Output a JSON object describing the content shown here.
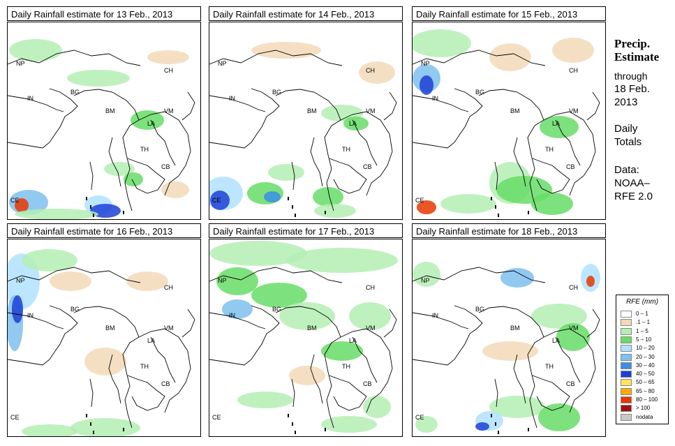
{
  "panels": [
    {
      "title": "Daily Rainfall estimate for  13 Feb., 2013"
    },
    {
      "title": "Daily Rainfall estimate for  14 Feb., 2013"
    },
    {
      "title": "Daily Rainfall estimate for  15 Feb., 2013"
    },
    {
      "title": "Daily Rainfall estimate for  16 Feb., 2013"
    },
    {
      "title": "Daily Rainfall estimate for  17 Feb., 2013"
    },
    {
      "title": "Daily Rainfall estimate for  18 Feb., 2013"
    }
  ],
  "country_labels": [
    "NP",
    "CH",
    "IN",
    "BG",
    "BM",
    "VM",
    "LA",
    "TH",
    "CB",
    "CE"
  ],
  "side": {
    "title_line1": "Precip.",
    "title_line2": "Estimate",
    "through": "through",
    "date_line1": "18 Feb.",
    "date_line2": "2013",
    "daily_line1": "Daily",
    "daily_line2": "Totals",
    "data_line1": "Data:",
    "data_line2": "NOAA–",
    "data_line3": "RFE 2.0"
  },
  "legend": {
    "title": "RFE (mm)",
    "items": [
      {
        "label": "0 – 1",
        "color": "#ffffff"
      },
      {
        "label": ".1 – 1",
        "color": "#f3d9b8"
      },
      {
        "label": "1 – 5",
        "color": "#b4eeb4"
      },
      {
        "label": "5 – 10",
        "color": "#66dd66"
      },
      {
        "label": "10 – 20",
        "color": "#b0e2ff"
      },
      {
        "label": "20 – 30",
        "color": "#7ec0ee"
      },
      {
        "label": "30 – 40",
        "color": "#3a8ee6"
      },
      {
        "label": "40 – 50",
        "color": "#1c3fd6"
      },
      {
        "label": "50 – 65",
        "color": "#ffe45c"
      },
      {
        "label": "65 – 80",
        "color": "#ffaa00"
      },
      {
        "label": "80 – 100",
        "color": "#e83800"
      },
      {
        "label": "> 100",
        "color": "#a01010"
      },
      {
        "label": "nodata",
        "color": "#c8c8c8"
      }
    ]
  }
}
